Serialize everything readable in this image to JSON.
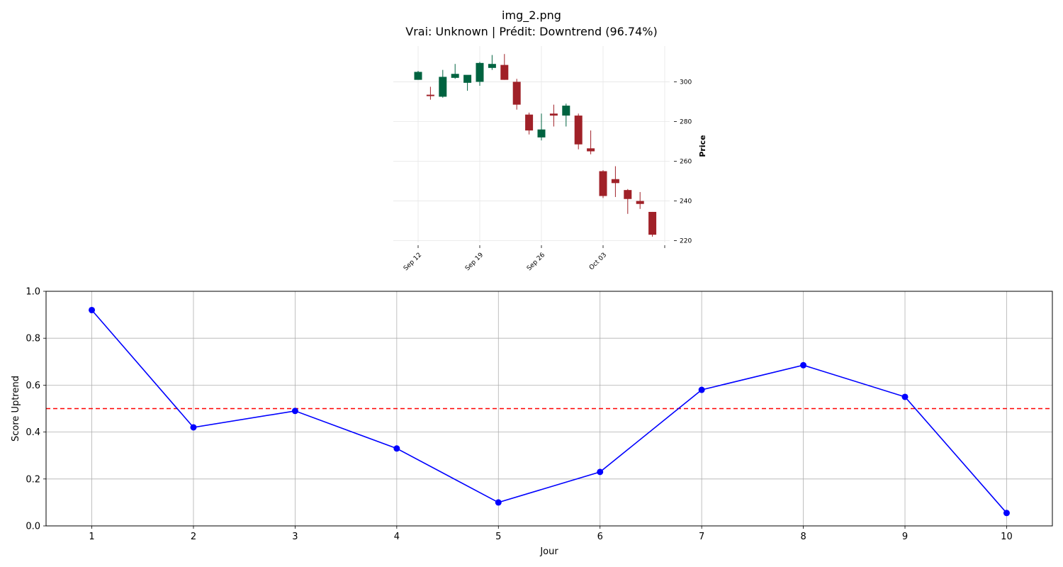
{
  "figure": {
    "title": "img_2.png",
    "subtitle": "Vrai: Unknown | Prédit: Downtrend (96.74%)"
  },
  "chart_data": [
    {
      "type": "candlestick",
      "title": "",
      "xlabel": "",
      "ylabel": "Price",
      "y_axis_side": "right",
      "ylim": [
        217,
        318
      ],
      "yticks": [
        220,
        240,
        260,
        280,
        300
      ],
      "xtick_labels": [
        "Sep 12",
        "Sep 19",
        "Sep 26",
        "Oct 03",
        ""
      ],
      "xtick_positions": [
        0,
        5,
        10,
        15,
        20
      ],
      "grid": true,
      "up_color": "#006340",
      "down_color": "#a02128",
      "candles": [
        {
          "i": 0,
          "open": 301.0,
          "high": 305.5,
          "low": 301.0,
          "close": 305.0
        },
        {
          "i": 1,
          "open": 293.5,
          "high": 297.5,
          "low": 291.0,
          "close": 292.8
        },
        {
          "i": 2,
          "open": 292.5,
          "high": 306.0,
          "low": 292.0,
          "close": 302.5
        },
        {
          "i": 3,
          "open": 302.0,
          "high": 309.0,
          "low": 301.5,
          "close": 304.0
        },
        {
          "i": 4,
          "open": 299.5,
          "high": 303.0,
          "low": 295.5,
          "close": 303.5
        },
        {
          "i": 5,
          "open": 300.0,
          "high": 310.0,
          "low": 298.0,
          "close": 309.5
        },
        {
          "i": 6,
          "open": 307.0,
          "high": 313.5,
          "low": 306.0,
          "close": 309.0
        },
        {
          "i": 7,
          "open": 308.5,
          "high": 314.0,
          "low": 301.0,
          "close": 301.0
        },
        {
          "i": 8,
          "open": 300.0,
          "high": 301.5,
          "low": 286.0,
          "close": 288.5
        },
        {
          "i": 9,
          "open": 283.5,
          "high": 284.5,
          "low": 273.5,
          "close": 275.5
        },
        {
          "i": 10,
          "open": 272.0,
          "high": 284.0,
          "low": 270.5,
          "close": 276.0
        },
        {
          "i": 11,
          "open": 284.0,
          "high": 288.5,
          "low": 277.5,
          "close": 283.0
        },
        {
          "i": 12,
          "open": 283.0,
          "high": 289.0,
          "low": 277.5,
          "close": 288.0
        },
        {
          "i": 13,
          "open": 283.0,
          "high": 284.0,
          "low": 266.0,
          "close": 268.5
        },
        {
          "i": 14,
          "open": 266.5,
          "high": 275.5,
          "low": 263.5,
          "close": 265.0
        },
        {
          "i": 15,
          "open": 255.0,
          "high": 255.5,
          "low": 241.5,
          "close": 242.5
        },
        {
          "i": 16,
          "open": 251.0,
          "high": 257.5,
          "low": 242.0,
          "close": 249.0
        },
        {
          "i": 17,
          "open": 245.5,
          "high": 246.0,
          "low": 233.5,
          "close": 241.0
        },
        {
          "i": 18,
          "open": 240.0,
          "high": 244.5,
          "low": 236.0,
          "close": 238.5
        },
        {
          "i": 19,
          "open": 234.5,
          "high": 234.5,
          "low": 222.0,
          "close": 223.0
        }
      ]
    },
    {
      "type": "line",
      "title": "",
      "xlabel": "Jour",
      "ylabel": "Score Uptrend",
      "xlim": [
        0.55,
        10.45
      ],
      "ylim": [
        0,
        1
      ],
      "xticks": [
        1,
        2,
        3,
        4,
        5,
        6,
        7,
        8,
        9,
        10
      ],
      "yticks": [
        0.0,
        0.2,
        0.4,
        0.6,
        0.8,
        1.0
      ],
      "grid": true,
      "x": [
        1,
        2,
        3,
        4,
        5,
        6,
        7,
        8,
        9,
        10
      ],
      "series": [
        {
          "values": [
            0.92,
            0.42,
            0.49,
            0.33,
            0.1,
            0.23,
            0.58,
            0.685,
            0.55,
            0.055
          ],
          "color": "#0000ff",
          "marker": "circle"
        }
      ],
      "threshold": {
        "y": 0.5,
        "color": "#ff0000",
        "style": "dashed"
      }
    }
  ]
}
